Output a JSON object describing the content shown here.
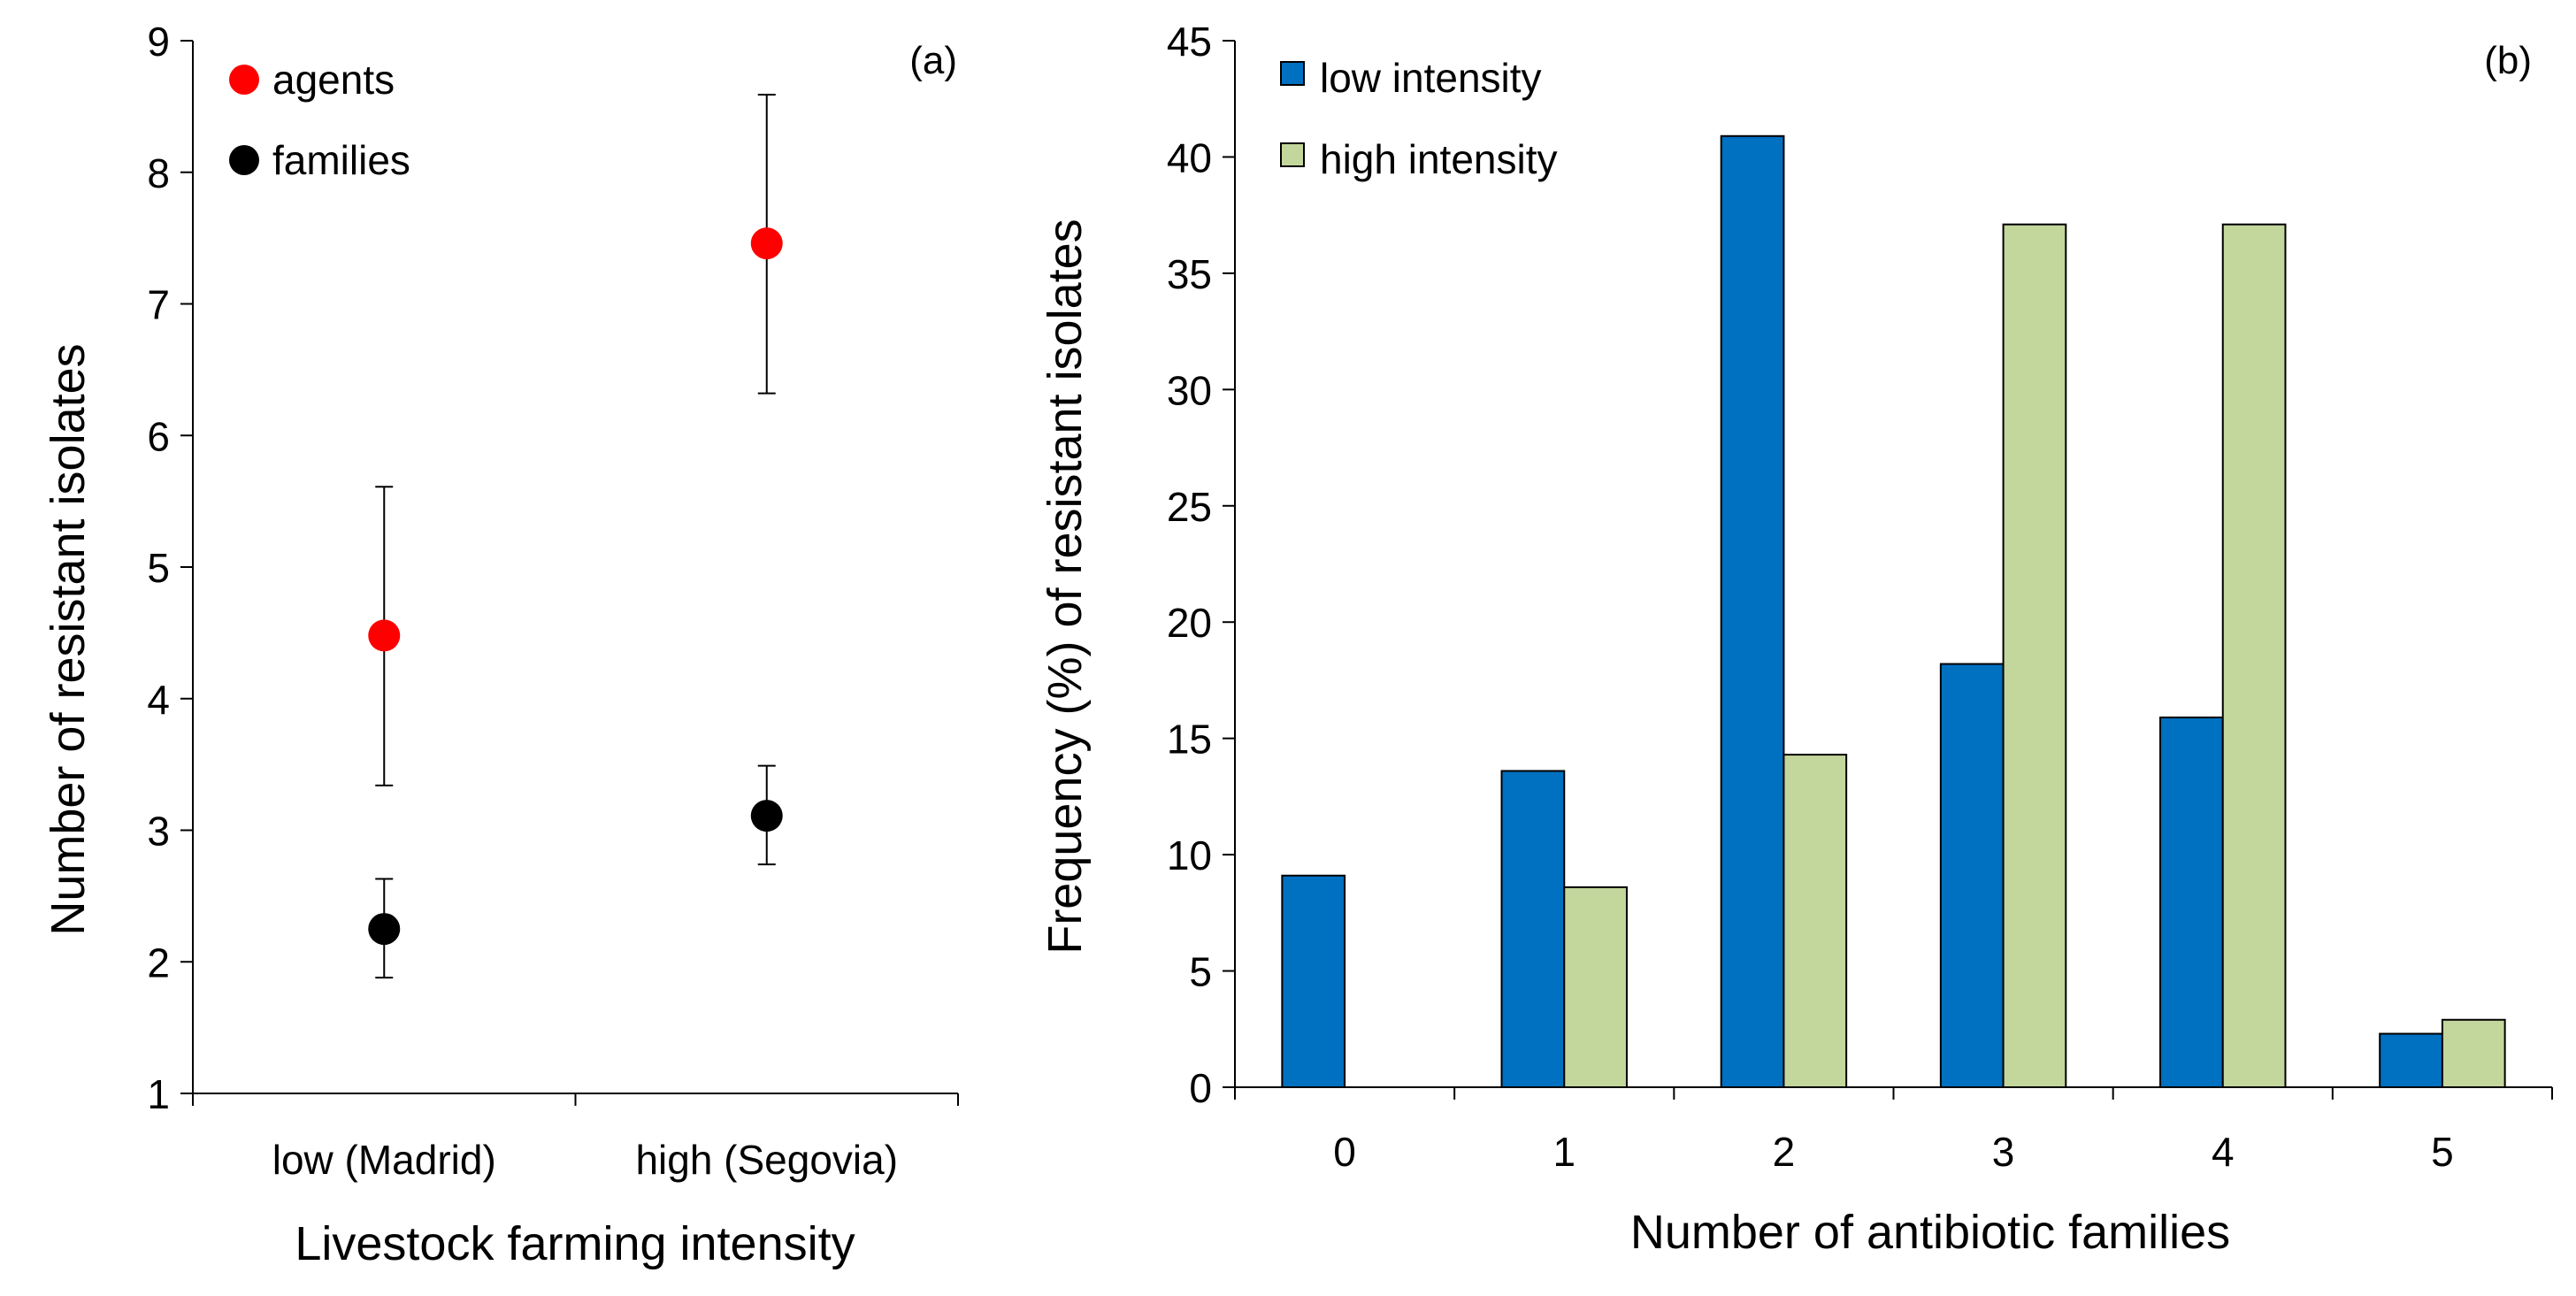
{
  "chart_data": [
    {
      "type": "scatter",
      "panel_label": "(a)",
      "xlabel": "Livestock farming intensity",
      "ylabel": "Number of resistant isolates",
      "ylim": [
        1,
        9
      ],
      "yticks": [
        "1",
        "2",
        "3",
        "4",
        "5",
        "6",
        "7",
        "8",
        "9"
      ],
      "categories": [
        "low (Madrid)",
        "high (Segovia)"
      ],
      "series": [
        {
          "name": "agents",
          "color": "#ff0000",
          "values": [
            4.48,
            7.46
          ],
          "err_low": [
            3.34,
            6.32
          ],
          "err_high": [
            5.61,
            8.59
          ]
        },
        {
          "name": "families",
          "color": "#000000",
          "values": [
            2.25,
            3.11
          ],
          "err_low": [
            1.88,
            2.74
          ],
          "err_high": [
            2.63,
            3.49
          ]
        }
      ],
      "legend": [
        "agents",
        "families"
      ]
    },
    {
      "type": "bar",
      "panel_label": "(b)",
      "xlabel": "Number of antibiotic families",
      "ylabel": "Frequency (%) of resistant isolates",
      "ylim": [
        0,
        45
      ],
      "yticks": [
        "0",
        "5",
        "10",
        "15",
        "20",
        "25",
        "30",
        "35",
        "40",
        "45"
      ],
      "categories": [
        "0",
        "1",
        "2",
        "3",
        "4",
        "5"
      ],
      "series": [
        {
          "name": "low intensity",
          "color": "#0070c0",
          "values": [
            9.1,
            13.6,
            40.9,
            18.2,
            15.9,
            2.3
          ]
        },
        {
          "name": "high intensity",
          "color": "#c3d69b",
          "values": [
            0,
            8.6,
            14.3,
            37.1,
            37.1,
            2.9
          ]
        }
      ],
      "legend": [
        "low intensity",
        "high intensity"
      ]
    }
  ]
}
